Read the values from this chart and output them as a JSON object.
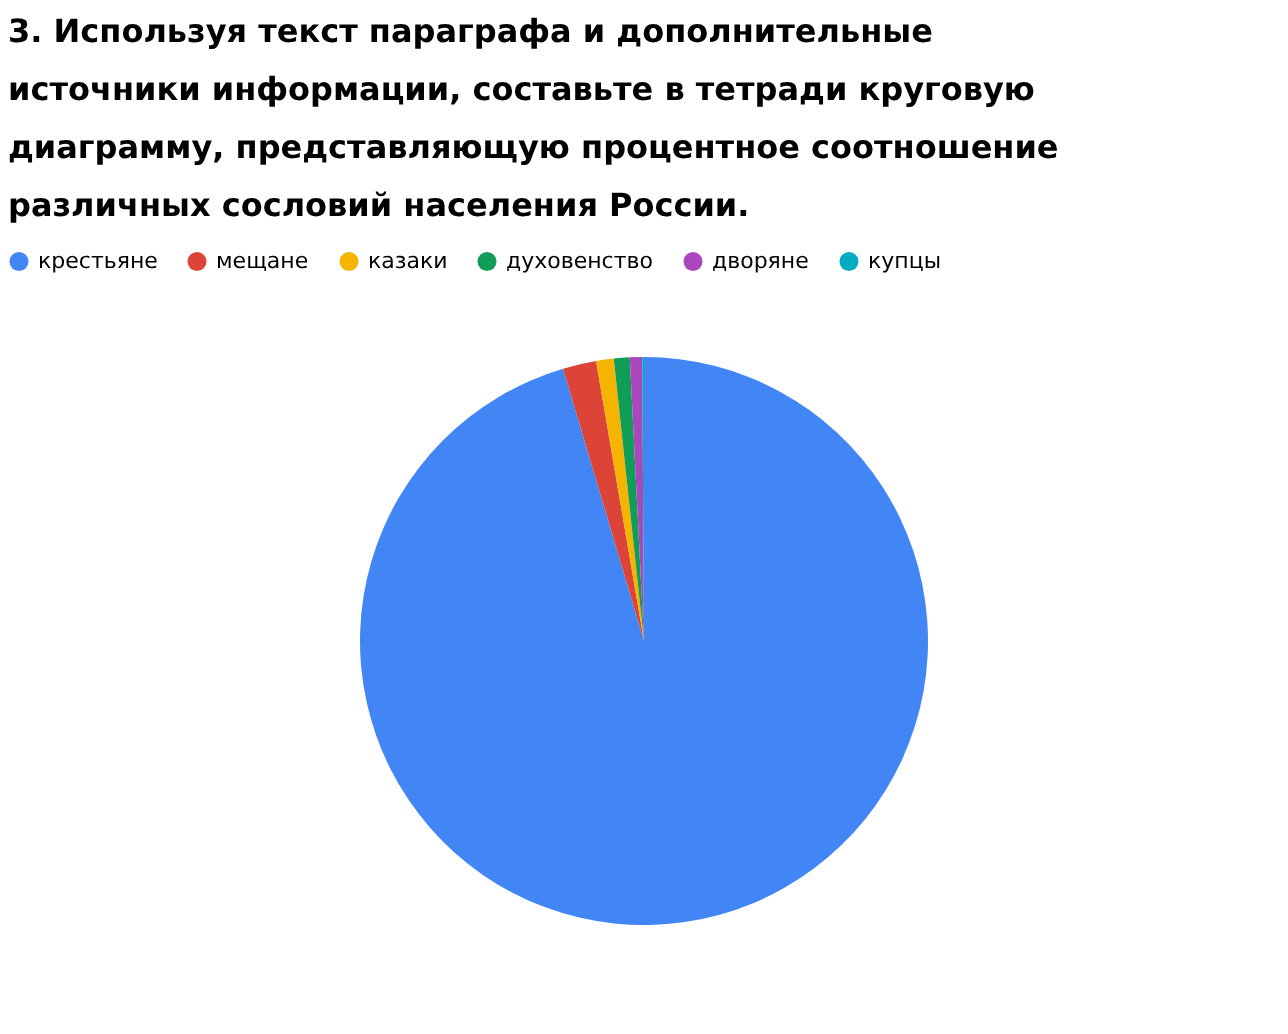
{
  "chart_data": {
    "type": "pie",
    "title": "3. Используя текст параграфа и дополнительные источники информации, составьте в тетради круговую диаграмму, представляющую процентное соотношение различных сословий населения России.",
    "categories": [
      "крестьяне",
      "мещане",
      "казаки",
      "духовенство",
      "дворяне",
      "купцы"
    ],
    "values": [
      95.4,
      1.9,
      1.0,
      0.9,
      0.7,
      0.1
    ],
    "colors": [
      "#4285f4",
      "#db4437",
      "#f4b400",
      "#0f9d58",
      "#ab47bc",
      "#00acc1"
    ],
    "legend": "top"
  }
}
